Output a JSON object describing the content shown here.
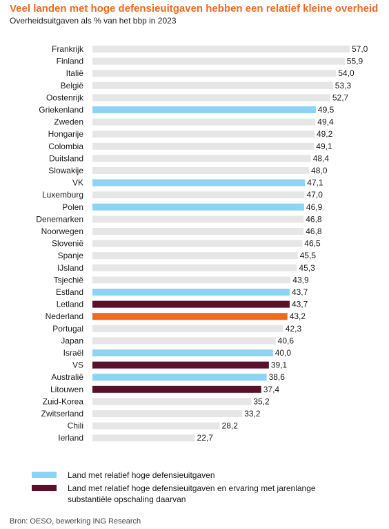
{
  "header": {
    "title": "Veel landen met hoge defensieuitgaven hebben een relatief kleine overheid",
    "subtitle": "Overheidsuitgaven  als % van het bbp in 2023"
  },
  "colors": {
    "default": "#e6e6e6",
    "high_defense": "#8fd3f4",
    "high_defense_scaled": "#5a0f2a",
    "netherlands": "#ef6c1f"
  },
  "chart_data": {
    "type": "bar",
    "orientation": "horizontal",
    "title": "Veel landen met hoge defensieuitgaven hebben een relatief kleine overheid",
    "subtitle": "Overheidsuitgaven  als % van het bbp in 2023",
    "categories": [
      "Frankrijk",
      "Finland",
      "Italië",
      "België",
      "Oostenrijk",
      "Griekenland",
      "Zweden",
      "Hongarije",
      "Colombia",
      "Duitsland",
      "Slowakije",
      "VK",
      "Luxemburg",
      "Polen",
      "Denemarken",
      "Noorwegen",
      "Slovenië",
      "Spanje",
      "IJsland",
      "Tsjechië",
      "Estland",
      "Letland",
      "Nederland",
      "Portugal",
      "Japan",
      "Israël",
      "VS",
      "Australië",
      "Litouwen",
      "Zuid-Korea",
      "Zwitserland",
      "Chili",
      "Ierland"
    ],
    "values": [
      57.0,
      55.9,
      54.0,
      53.3,
      52.7,
      49.5,
      49.4,
      49.2,
      49.1,
      48.4,
      48.0,
      47.1,
      47.0,
      46.9,
      46.8,
      46.8,
      46.5,
      45.5,
      45.3,
      43.9,
      43.7,
      43.7,
      43.2,
      42.3,
      40.6,
      40.0,
      39.1,
      38.6,
      37.4,
      35.2,
      33.2,
      28.2,
      22.7
    ],
    "value_labels": [
      "57,0",
      "55,9",
      "54,0",
      "53,3",
      "52,7",
      "49,5",
      "49,4",
      "49,2",
      "49,1",
      "48,4",
      "48,0",
      "47,1",
      "47,0",
      "46,9",
      "46,8",
      "46,8",
      "46,5",
      "45,5",
      "45,3",
      "43,9",
      "43,7",
      "43,7",
      "43,2",
      "42,3",
      "40,6",
      "40,0",
      "39,1",
      "38,6",
      "37,4",
      "35,2",
      "33,2",
      "28,2",
      "22,7"
    ],
    "groups": [
      "default",
      "default",
      "default",
      "default",
      "default",
      "high_defense",
      "default",
      "default",
      "default",
      "default",
      "default",
      "high_defense",
      "default",
      "high_defense",
      "default",
      "default",
      "default",
      "default",
      "default",
      "default",
      "high_defense",
      "high_defense_scaled",
      "netherlands",
      "default",
      "default",
      "high_defense",
      "high_defense_scaled",
      "high_defense",
      "high_defense_scaled",
      "default",
      "default",
      "default",
      "default"
    ],
    "xlim": [
      0,
      57.0
    ]
  },
  "legend": {
    "items": [
      {
        "group": "high_defense",
        "label": "Land met relatief hoge defensieuitgaven"
      },
      {
        "group": "high_defense_scaled",
        "label": "Land met relatief hoge defensieuitgaven en ervaring met jarenlange substantiële opschaling daarvan"
      }
    ]
  },
  "source": "Bron: OESO, bewerking ING Research"
}
